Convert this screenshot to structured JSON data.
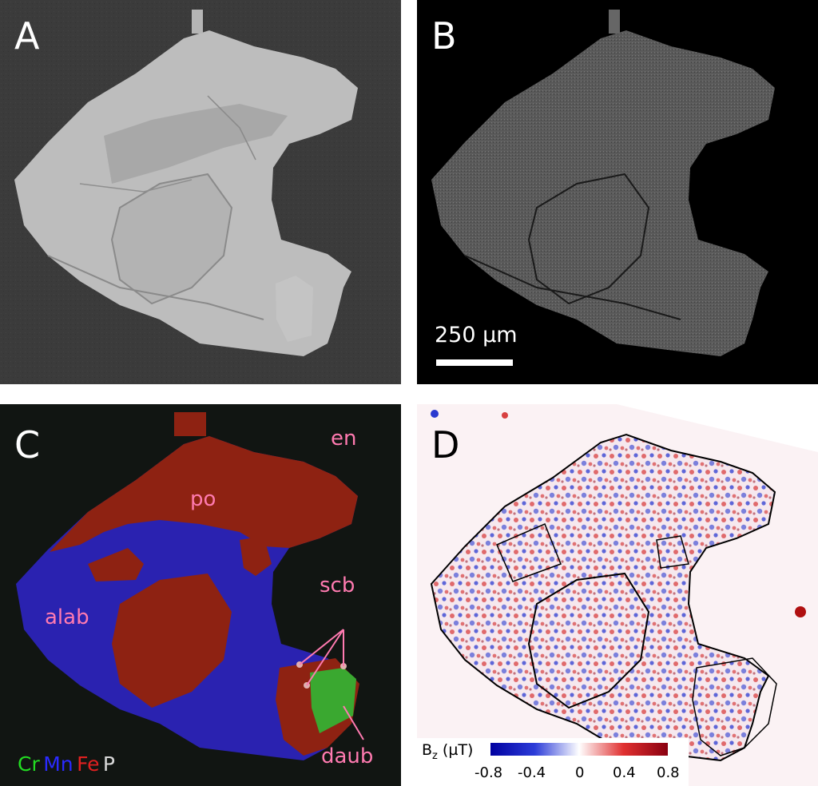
{
  "panels": {
    "a": {
      "label": "A"
    },
    "b": {
      "label": "B",
      "scalebar": "250 µm"
    },
    "c": {
      "label": "C",
      "phases": {
        "en": "en",
        "po": "po",
        "alab": "alab",
        "scb": "scb",
        "daub": "daub"
      },
      "elements": [
        {
          "symbol": "Cr",
          "color": "#22dd22"
        },
        {
          "symbol": "Mn",
          "color": "#2a2aff"
        },
        {
          "symbol": "Fe",
          "color": "#e02020"
        },
        {
          "symbol": "P",
          "color": "#d8d8d8"
        }
      ]
    },
    "d": {
      "label": "D",
      "colorbar": {
        "title_main": "B",
        "title_sub": "z",
        "title_unit": "(µT)",
        "ticks": [
          "-0.8",
          "-0.4",
          "0",
          "0.4",
          "0.8"
        ],
        "range": [
          -0.8,
          0.8
        ],
        "colors": [
          "#0000a0",
          "#2c3cd8",
          "#ffffff",
          "#e03030",
          "#8a0010"
        ]
      }
    }
  }
}
